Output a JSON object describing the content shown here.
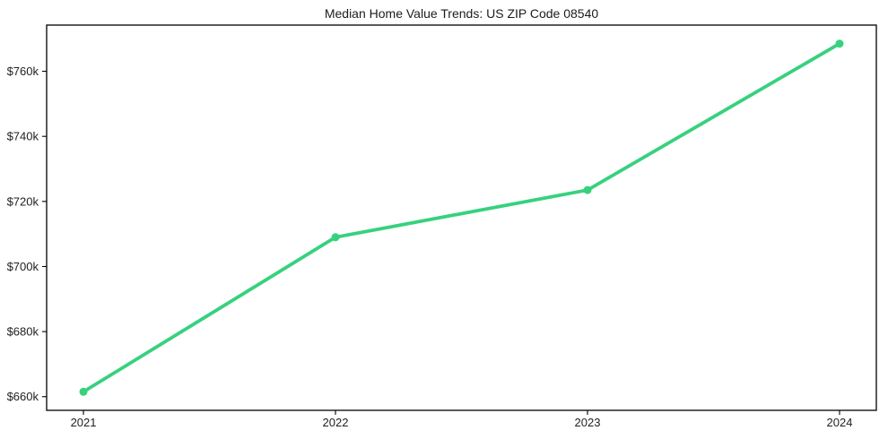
{
  "figure": {
    "background": "#ffffff"
  },
  "chart_data": {
    "type": "line",
    "title": "Median Home Value Trends: US ZIP Code 08540",
    "x": [
      2021,
      2022,
      2023,
      2024
    ],
    "x_tick_labels": [
      "2021",
      "2022",
      "2023",
      "2024"
    ],
    "series": [
      {
        "name": "Median Home Value",
        "values_k": [
          661.5,
          709,
          723.5,
          768.5
        ],
        "color": "#37d17e"
      }
    ],
    "y_ticks_k": [
      660,
      680,
      700,
      720,
      740,
      760
    ],
    "y_tick_labels": [
      "$660k",
      "$680k",
      "$700k",
      "$720k",
      "$740k",
      "$760k"
    ],
    "ylabel": "",
    "xlabel": "",
    "xlim": [
      2020.854,
      2024.146
    ],
    "ylim_k": [
      655.8,
      774.2
    ],
    "grid": false,
    "legend_position": "none",
    "frame_color": "#000000",
    "text_color": "#222222",
    "line_width": 3.8,
    "marker_radius": 4.5
  }
}
